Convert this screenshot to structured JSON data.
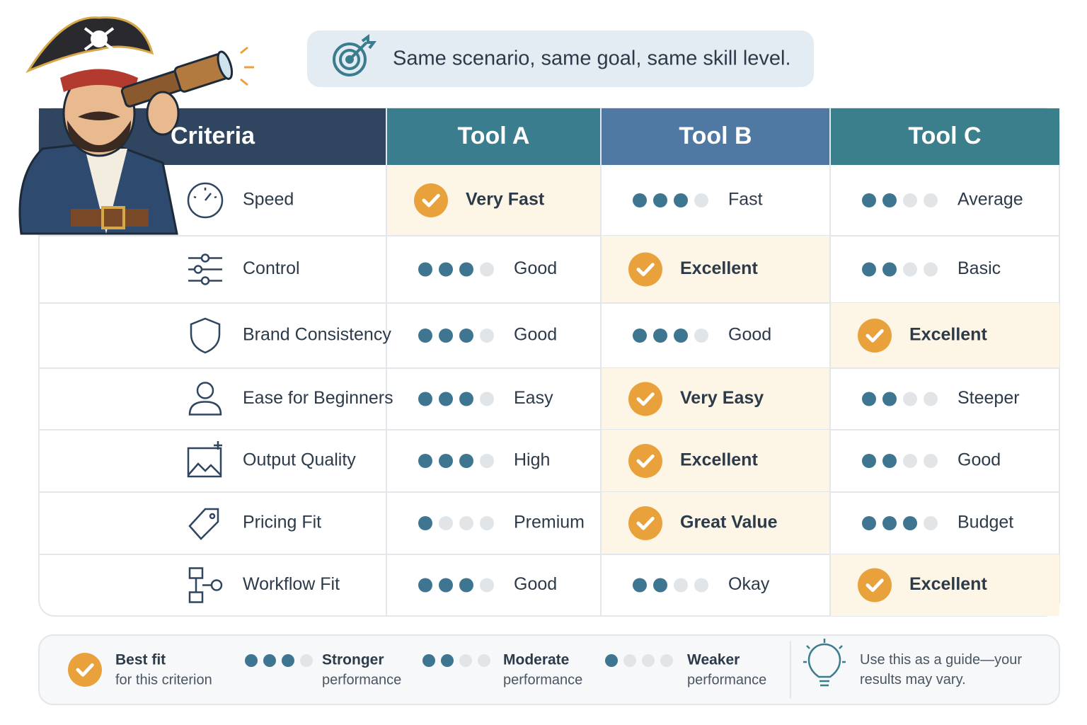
{
  "banner": {
    "text": "Same scenario, same goal, same skill level."
  },
  "table": {
    "header": [
      "Criteria",
      "Tool A",
      "Tool B",
      "Tool C"
    ],
    "rating_scale": 4,
    "rows": [
      {
        "criterion": "Speed",
        "cells": [
          {
            "label": "Very Fast",
            "best": true
          },
          {
            "label": "Fast",
            "rating": 3
          },
          {
            "label": "Average",
            "rating": 2
          }
        ]
      },
      {
        "criterion": "Control",
        "cells": [
          {
            "label": "Good",
            "rating": 3
          },
          {
            "label": "Excellent",
            "best": true
          },
          {
            "label": "Basic",
            "rating": 2
          }
        ]
      },
      {
        "criterion": "Brand Consistency",
        "cells": [
          {
            "label": "Good",
            "rating": 3
          },
          {
            "label": "Good",
            "rating": 3
          },
          {
            "label": "Excellent",
            "best": true
          }
        ]
      },
      {
        "criterion": "Ease for Beginners",
        "cells": [
          {
            "label": "Easy",
            "rating": 3
          },
          {
            "label": "Very Easy",
            "best": true
          },
          {
            "label": "Steeper",
            "rating": 2
          }
        ]
      },
      {
        "criterion": "Output Quality",
        "cells": [
          {
            "label": "High",
            "rating": 3
          },
          {
            "label": "Excellent",
            "best": true
          },
          {
            "label": "Good",
            "rating": 2
          }
        ]
      },
      {
        "criterion": "Pricing Fit",
        "cells": [
          {
            "label": "Premium",
            "rating": 1
          },
          {
            "label": "Great Value",
            "best": true
          },
          {
            "label": "Budget",
            "rating": 3
          }
        ]
      },
      {
        "criterion": "Workflow Fit",
        "cells": [
          {
            "label": "Good",
            "rating": 3
          },
          {
            "label": "Okay",
            "rating": 2
          },
          {
            "label": "Excellent",
            "best": true
          }
        ]
      }
    ]
  },
  "legend": {
    "items": [
      {
        "title": "Best fit",
        "text": "for this criterion",
        "best": true
      },
      {
        "title": "Stronger",
        "text": "performance",
        "rating": 3
      },
      {
        "title": "Moderate",
        "text": "performance",
        "rating": 2
      },
      {
        "title": "Weaker",
        "text": "performance",
        "rating": 1
      }
    ],
    "note": "Use this as a guide—your results may vary."
  }
}
